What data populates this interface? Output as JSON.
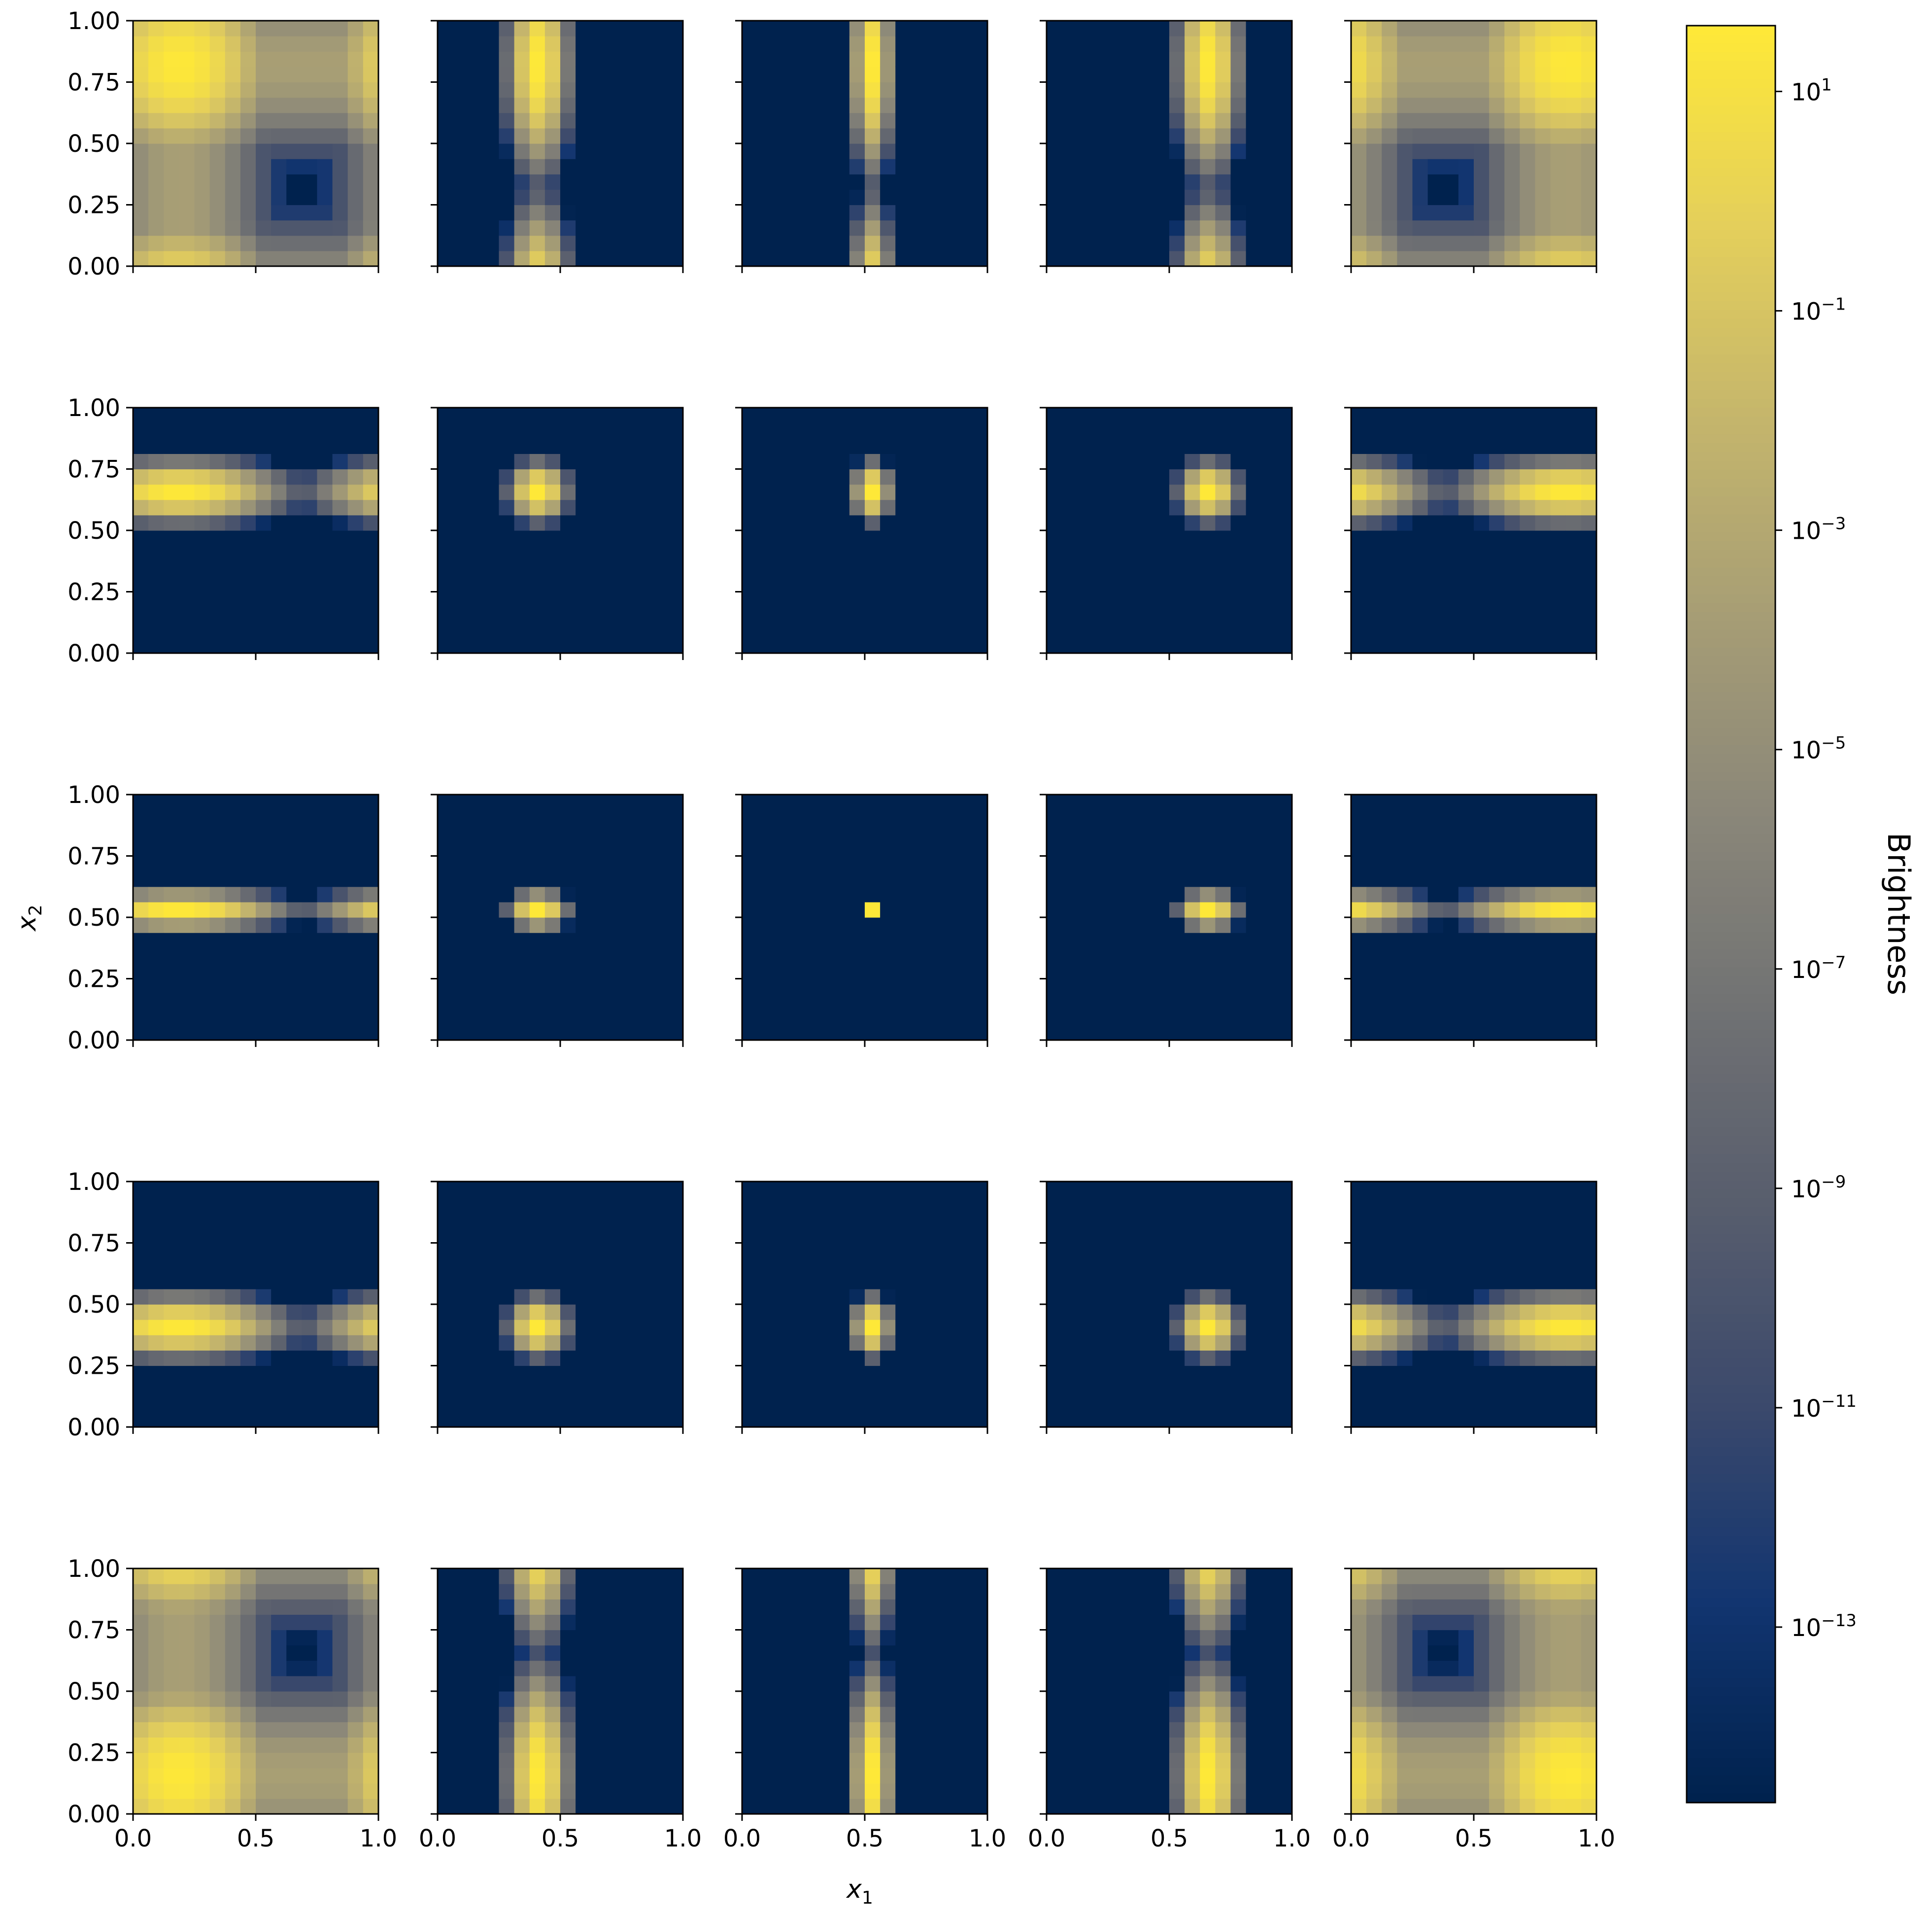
{
  "chart_data": {
    "type": "heatmap",
    "layout": {
      "rows": 5,
      "cols": 5
    },
    "grid_resolution": 16,
    "colormap": "cividis",
    "colormap_stops": [
      "#00224e",
      "#123570",
      "#3b496c",
      "#575d6d",
      "#707173",
      "#8a8779",
      "#a69d75",
      "#c4b56c",
      "#e4cf5b",
      "#fee838"
    ],
    "xlabel_main": "x",
    "xlabel_sub": "1",
    "ylabel_main": "x",
    "ylabel_sub": "2",
    "x_range": [
      0.0,
      1.0
    ],
    "y_range": [
      0.0,
      1.0
    ],
    "x_tick_values": [
      0.0,
      0.5,
      1.0
    ],
    "x_tick_labels": [
      "0.0",
      "0.5",
      "1.0"
    ],
    "y_tick_values": [
      0.0,
      0.25,
      0.5,
      0.75,
      1.0
    ],
    "y_tick_labels": [
      "0.00",
      "0.25",
      "0.50",
      "0.75",
      "1.00"
    ],
    "colorbar": {
      "label": "Brightness",
      "scale": "log",
      "range_exponent": [
        -14.6,
        1.6
      ],
      "tick_base": "10",
      "tick_exponents": [
        "1",
        "−1",
        "−3",
        "−5",
        "−7",
        "−9",
        "−11",
        "−13"
      ],
      "tick_values_exp": [
        1,
        -1,
        -3,
        -5,
        -7,
        -9,
        -11,
        -13
      ]
    },
    "panel_centers_x": [
      0.19,
      0.41,
      0.53,
      0.66,
      0.88
    ],
    "panel_centers_y": [
      0.82,
      0.66,
      0.53,
      0.41,
      0.16
    ],
    "peak_width_x": [
      0.55,
      0.16,
      0.1,
      0.16,
      0.55
    ],
    "peak_width_y": [
      0.55,
      0.16,
      0.1,
      0.16,
      0.55
    ]
  }
}
